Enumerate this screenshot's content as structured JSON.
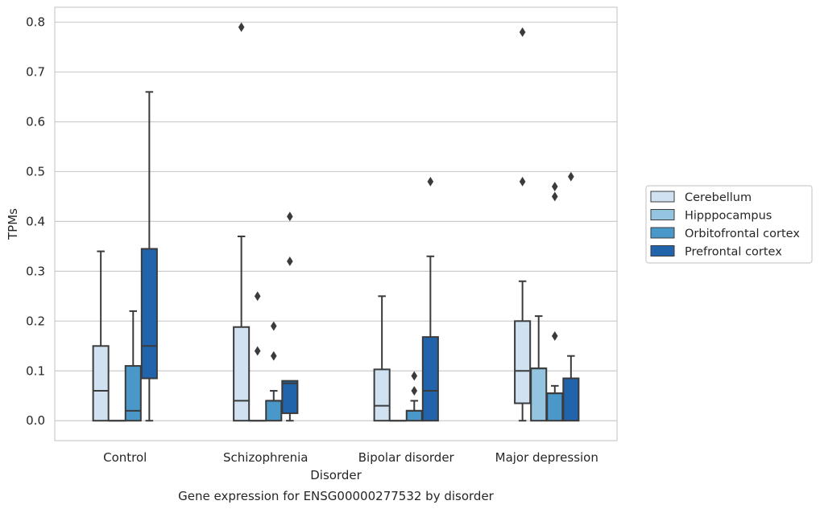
{
  "chart_data": {
    "type": "box",
    "title": "Gene expression for ENSG00000277532 by disorder",
    "xlabel": "Disorder",
    "ylabel": "TPMs",
    "categories": [
      "Control",
      "Schizophrenia",
      "Bipolar disorder",
      "Major depression"
    ],
    "ylim": [
      -0.04,
      0.83
    ],
    "yticks": [
      "0.0",
      "0.1",
      "0.2",
      "0.3",
      "0.4",
      "0.5",
      "0.6",
      "0.7",
      "0.8"
    ],
    "grid": "horizontal",
    "legend_position": "right",
    "series": [
      {
        "name": "Cerebellum",
        "color": "#d0e1f2",
        "boxes": [
          {
            "whislo": 0.0,
            "q1": 0.0,
            "med": 0.06,
            "q3": 0.15,
            "whishi": 0.34,
            "fliers": []
          },
          {
            "whislo": 0.0,
            "q1": 0.0,
            "med": 0.04,
            "q3": 0.188,
            "whishi": 0.37,
            "fliers": [
              0.79
            ]
          },
          {
            "whislo": 0.0,
            "q1": 0.0,
            "med": 0.03,
            "q3": 0.103,
            "whishi": 0.25,
            "fliers": []
          },
          {
            "whislo": 0.0,
            "q1": 0.035,
            "med": 0.1,
            "q3": 0.2,
            "whishi": 0.28,
            "fliers": [
              0.48,
              0.78
            ]
          }
        ]
      },
      {
        "name": "Hipppocampus",
        "color": "#94c4df",
        "boxes": [
          {
            "whislo": 0.0,
            "q1": 0.0,
            "med": 0.0,
            "q3": 0.0,
            "whishi": 0.0,
            "fliers": []
          },
          {
            "whislo": 0.0,
            "q1": 0.0,
            "med": 0.0,
            "q3": 0.0,
            "whishi": 0.0,
            "fliers": [
              0.14,
              0.25
            ]
          },
          {
            "whislo": 0.0,
            "q1": 0.0,
            "med": 0.0,
            "q3": 0.0,
            "whishi": 0.0,
            "fliers": []
          },
          {
            "whislo": 0.0,
            "q1": 0.0,
            "med": 0.105,
            "q3": 0.105,
            "whishi": 0.21,
            "fliers": []
          }
        ]
      },
      {
        "name": "Orbitofrontal cortex",
        "color": "#4a98c9",
        "boxes": [
          {
            "whislo": 0.0,
            "q1": 0.0,
            "med": 0.02,
            "q3": 0.11,
            "whishi": 0.22,
            "fliers": []
          },
          {
            "whislo": 0.0,
            "q1": 0.0,
            "med": 0.04,
            "q3": 0.04,
            "whishi": 0.06,
            "fliers": [
              0.13,
              0.19
            ]
          },
          {
            "whislo": 0.0,
            "q1": 0.0,
            "med": 0.02,
            "q3": 0.02,
            "whishi": 0.04,
            "fliers": [
              0.06,
              0.09
            ]
          },
          {
            "whislo": 0.0,
            "q1": 0.0,
            "med": 0.055,
            "q3": 0.055,
            "whishi": 0.07,
            "fliers": [
              0.17,
              0.45,
              0.47
            ]
          }
        ]
      },
      {
        "name": "Prefrontal cortex",
        "color": "#2164ab",
        "boxes": [
          {
            "whislo": 0.0,
            "q1": 0.085,
            "med": 0.15,
            "q3": 0.345,
            "whishi": 0.66,
            "fliers": []
          },
          {
            "whislo": 0.0,
            "q1": 0.015,
            "med": 0.075,
            "q3": 0.08,
            "whishi": 0.08,
            "fliers": [
              0.32,
              0.41
            ]
          },
          {
            "whislo": 0.0,
            "q1": 0.0,
            "med": 0.06,
            "q3": 0.168,
            "whishi": 0.33,
            "fliers": [
              0.48
            ]
          },
          {
            "whislo": 0.0,
            "q1": 0.0,
            "med": 0.085,
            "q3": 0.085,
            "whishi": 0.13,
            "fliers": [
              0.49
            ]
          }
        ]
      }
    ]
  }
}
